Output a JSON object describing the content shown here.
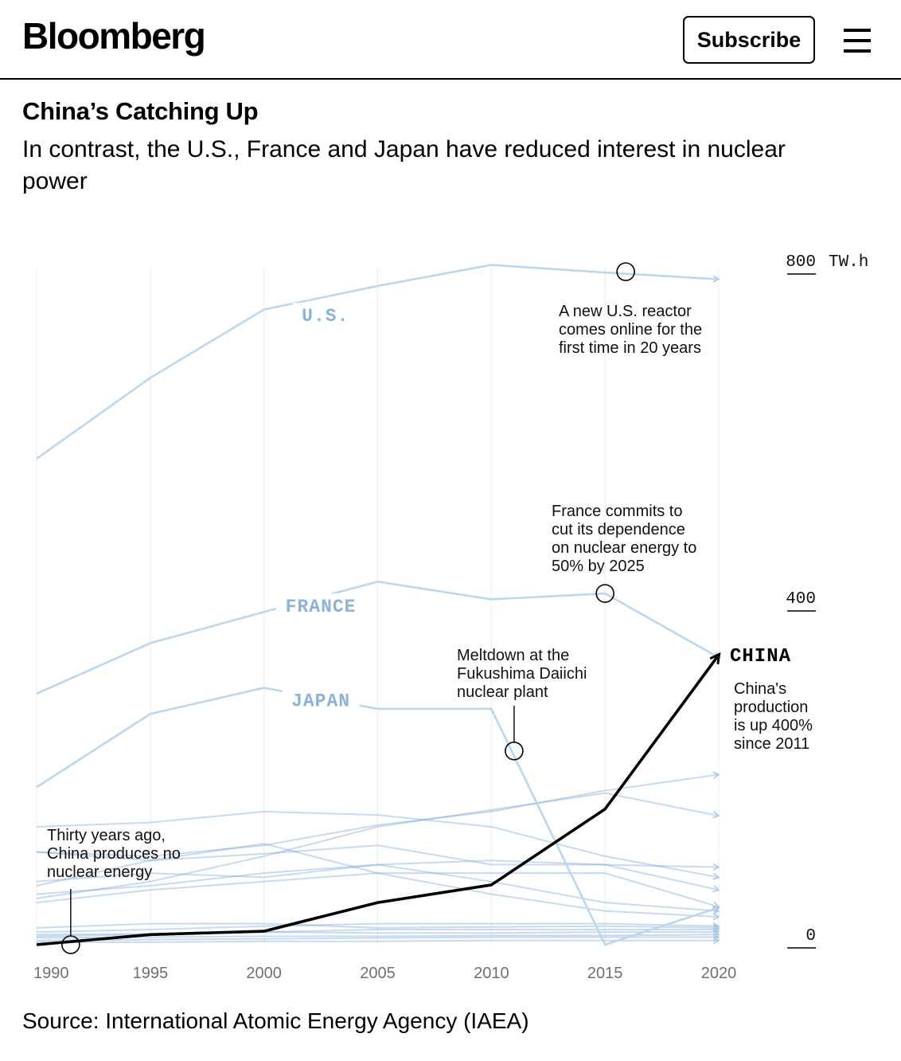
{
  "header": {
    "logo": "Bloomberg",
    "subscribe_label": "Subscribe",
    "menu_icon": "hamburger-menu-icon"
  },
  "article": {
    "title": "China’s Catching Up",
    "subtitle": "In contrast, the U.S., France and Japan have reduced interest in nuclear power",
    "source": "Source: International Atomic Energy Agency (IAEA)"
  },
  "chart_data": {
    "type": "line",
    "title": "China’s Catching Up",
    "subtitle": "In contrast, the U.S., France and Japan have reduced interest in nuclear power",
    "x": [
      1990,
      1995,
      2000,
      2005,
      2010,
      2015,
      2020
    ],
    "x_tick_labels": [
      "1990",
      "1995",
      "2000",
      "2005",
      "2010",
      "2015",
      "2020"
    ],
    "ylim": [
      0,
      800
    ],
    "y_unit": "TW.h",
    "y_ticks": [
      {
        "value": 800,
        "label": "800",
        "unit": "TW.h"
      },
      {
        "value": 400,
        "label": "400",
        "unit": ""
      },
      {
        "value": 0,
        "label": "0",
        "unit": ""
      }
    ],
    "colors": {
      "highlight": "#000000",
      "others": "#b9d7ef",
      "labels": "#8bb2d9",
      "minor": "#7aa8dc"
    },
    "series": [
      {
        "name": "U.S.",
        "label": "U.S.",
        "values": [
          577,
          673,
          754,
          782,
          807,
          798,
          790
        ]
      },
      {
        "name": "France",
        "label": "FRANCE",
        "values": [
          298,
          358,
          395,
          431,
          410,
          417,
          341
        ]
      },
      {
        "name": "Japan",
        "label": "JAPAN",
        "values": [
          187,
          274,
          305,
          280,
          280,
          0,
          44
        ]
      },
      {
        "name": "China",
        "label": "CHINA",
        "values": [
          0,
          12,
          16,
          50,
          71,
          161,
          344
        ]
      }
    ],
    "other_series": [
      {
        "values": [
          140,
          145,
          158,
          154,
          140,
          105,
          80
        ]
      },
      {
        "values": [
          110,
          105,
          118,
          142,
          158,
          183,
          202
        ]
      },
      {
        "values": [
          55,
          75,
          105,
          140,
          160,
          180,
          153
        ]
      },
      {
        "values": [
          110,
          100,
          108,
          118,
          95,
          95,
          92
        ]
      },
      {
        "values": [
          70,
          100,
          120,
          85,
          60,
          40,
          33
        ]
      },
      {
        "values": [
          60,
          70,
          85,
          95,
          100,
          95,
          65
        ]
      },
      {
        "values": [
          50,
          65,
          75,
          85,
          85,
          85,
          45
        ]
      },
      {
        "values": [
          75,
          85,
          80,
          95,
          75,
          50,
          40
        ]
      },
      {
        "values": [
          20,
          25,
          25,
          20,
          21,
          22,
          20
        ]
      },
      {
        "values": [
          15,
          18,
          22,
          25,
          25,
          25,
          22
        ]
      },
      {
        "values": [
          10,
          12,
          15,
          18,
          18,
          18,
          18
        ]
      },
      {
        "values": [
          12,
          13,
          15,
          14,
          14,
          15,
          15
        ]
      },
      {
        "values": [
          8,
          9,
          10,
          10,
          11,
          11,
          12
        ]
      },
      {
        "values": [
          5,
          6,
          7,
          8,
          9,
          9,
          9
        ]
      },
      {
        "values": [
          3,
          3,
          4,
          4,
          5,
          5,
          5
        ]
      }
    ],
    "annotations": [
      {
        "text": "A new U.S. reactor comes online for the first time in 20 years",
        "lines": [
          "A new U.S. reactor",
          "comes online for the",
          "first time in 20 years"
        ],
        "x": 2015,
        "y": 798
      },
      {
        "text": "France commits to cut its dependence on nuclear energy to 50% by 2025",
        "lines": [
          "France commits to",
          "cut its dependence",
          "on nuclear energy to",
          "50% by 2025"
        ],
        "x": 2015,
        "y": 417
      },
      {
        "text": "Meltdown at the Fukushima Daiichi nuclear plant",
        "lines": [
          "Meltdown at the",
          "Fukushima Daiichi",
          "nuclear plant"
        ],
        "x": 2011,
        "y": 230
      },
      {
        "text": "China's production is up 400% since 2011",
        "lines": [
          "China's",
          "production",
          "is up 400%",
          "since 2011"
        ],
        "x": 2020,
        "y": 344
      },
      {
        "text": "Thirty years ago, China produces no nuclear energy",
        "lines": [
          "Thirty years ago,",
          "China produces no",
          "nuclear energy"
        ],
        "x": 1991.5,
        "y": 0
      }
    ]
  }
}
